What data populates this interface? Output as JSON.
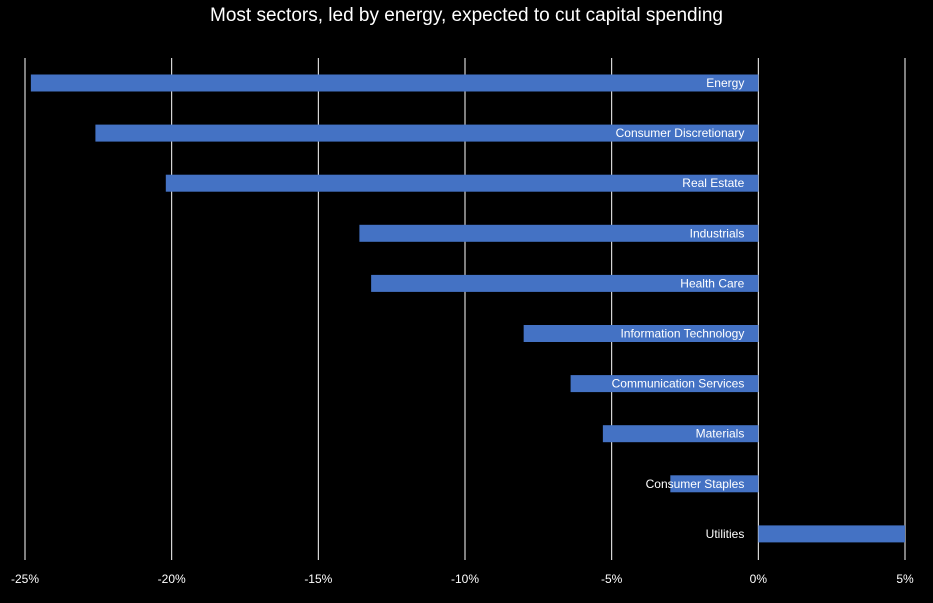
{
  "chart_data": {
    "type": "bar",
    "orientation": "horizontal",
    "title": "Most sectors, led by energy, expected to cut capital spending",
    "xlabel": "",
    "ylabel": "",
    "categories": [
      "Energy",
      "Consumer Discretionary",
      "Real Estate",
      "Industrials",
      "Health Care",
      "Information Technology",
      "Communication Services",
      "Materials",
      "Consumer Staples",
      "Utilities"
    ],
    "values": [
      -24.8,
      -22.6,
      -20.2,
      -13.6,
      -13.2,
      -8.0,
      -6.4,
      -5.3,
      -3.0,
      5.0
    ],
    "unit": "%",
    "xlim": [
      -25,
      5
    ],
    "xticks": [
      -25,
      -20,
      -15,
      -10,
      -5,
      0,
      5
    ],
    "xtick_labels": [
      "-25%",
      "-20%",
      "-15%",
      "-10%",
      "-5%",
      "0%",
      "5%"
    ],
    "grid": "vertical",
    "legend": "none",
    "bar_color": "#4472C4",
    "grid_color": "#ffffff",
    "background": "#000000",
    "text_color": "#ffffff"
  }
}
